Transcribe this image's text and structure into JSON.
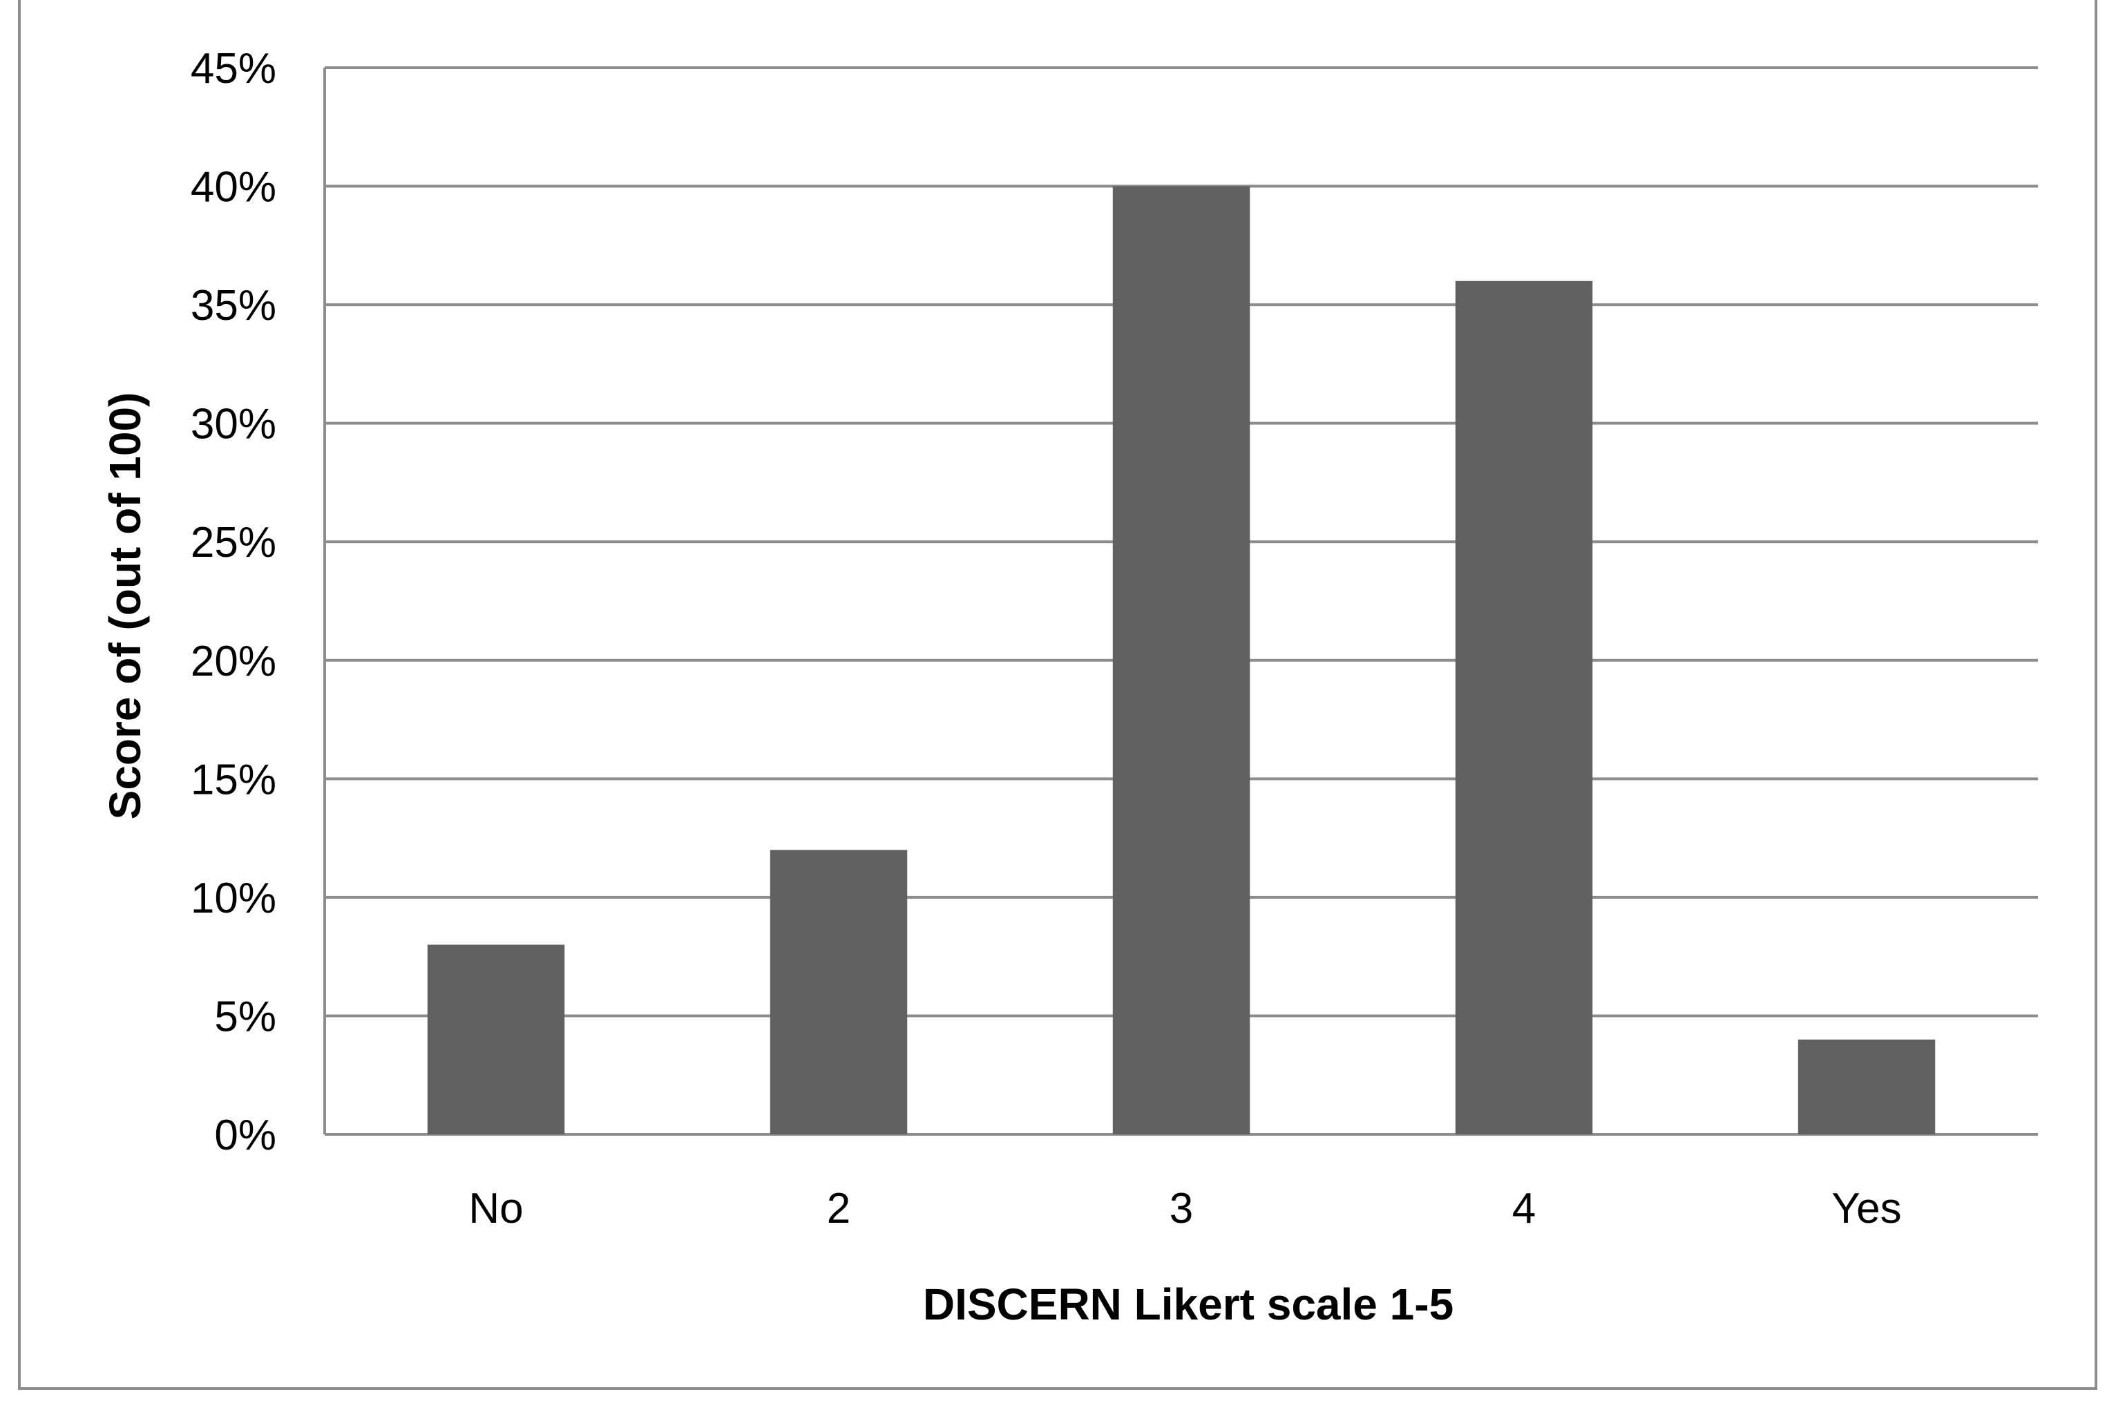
{
  "chart_data": {
    "type": "bar",
    "categories": [
      "No",
      "2",
      "3",
      "4",
      "Yes"
    ],
    "values": [
      8,
      12,
      40,
      36,
      4
    ],
    "title": "",
    "xlabel": "DISCERN Likert scale 1-5",
    "ylabel": "Score of (out of 100)",
    "ylim": [
      0,
      45
    ],
    "y_ticks": [
      0,
      5,
      10,
      15,
      20,
      25,
      30,
      35,
      40,
      45
    ],
    "y_tick_format": "percent",
    "grid": true,
    "legend": "none",
    "colors": {
      "bar": "#606060",
      "grid": "#8c8c8c",
      "frame": "#8c8c8c"
    }
  }
}
